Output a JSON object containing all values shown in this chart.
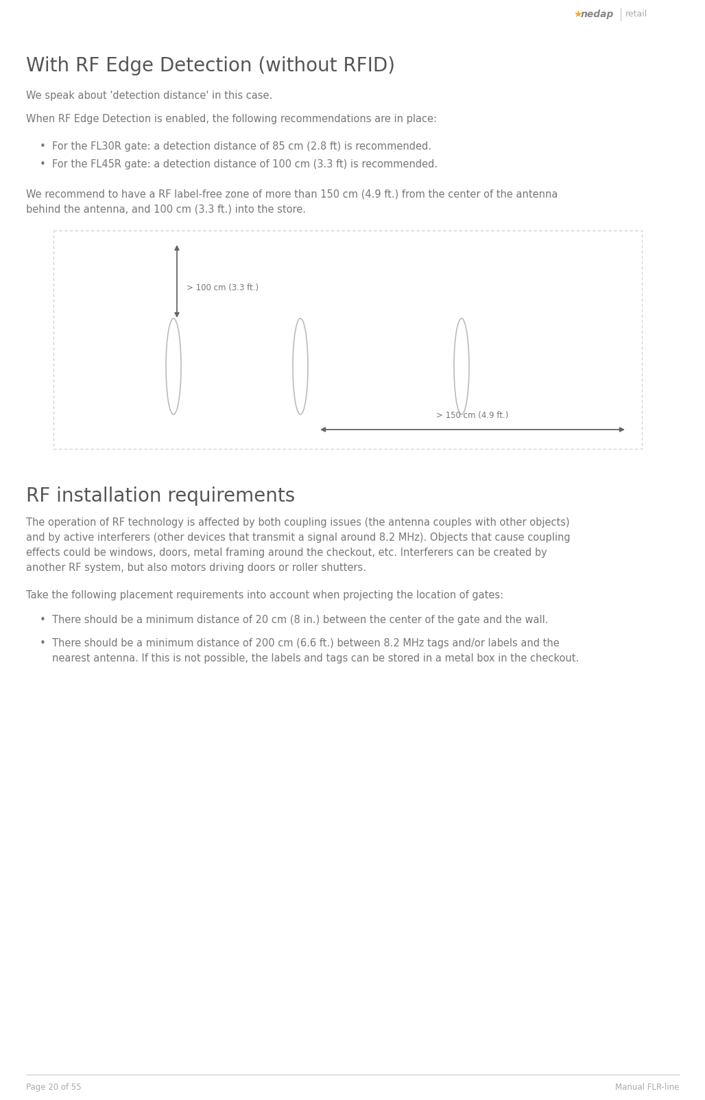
{
  "page_bg": "#ffffff",
  "title": "With RF Edge Detection (without RFID)",
  "title_fontsize": 20,
  "title_color": "#555555",
  "body_fontsize": 10.5,
  "body_color": "#777777",
  "para1": "We speak about 'detection distance' in this case.",
  "para2": "When RF Edge Detection is enabled, the following recommendations are in place:",
  "bullet1": "For the FL30R gate: a detection distance of 85 cm (2.8 ft) is recommended.",
  "bullet2": "For the FL45R gate: a detection distance of 100 cm (3.3 ft) is recommended.",
  "para3_line1": "We recommend to have a RF label-free zone of more than 150 cm (4.9 ft.) from the center of the antenna",
  "para3_line2": "behind the antenna, and 100 cm (3.3 ft.) into the store.",
  "section2_title": "RF installation requirements",
  "section2_title_fontsize": 20,
  "section2_para1_line1": "The operation of RF technology is affected by both coupling issues (the antenna couples with other objects)",
  "section2_para1_line2": "and by active interferers (other devices that transmit a signal around 8.2 MHz). Objects that cause coupling",
  "section2_para1_line3": "effects could be windows, doors, metal framing around the checkout, etc. Interferers can be created by",
  "section2_para1_line4": "another RF system, but also motors driving doors or roller shutters.",
  "section2_para2": "Take the following placement requirements into account when projecting the location of gates:",
  "section2_bullet1": "There should be a minimum distance of 20 cm (8 in.) between the center of the gate and the wall.",
  "section2_bullet2_line1": "There should be a minimum distance of 200 cm (6.6 ft.) between 8.2 MHz tags and/or labels and the",
  "section2_bullet2_line2": "nearest antenna. If this is not possible, the labels and tags can be stored in a metal box in the checkout.",
  "footer_left": "Page 20 of 55",
  "footer_right": "Manual FLR-line",
  "footer_color": "#aaaaaa",
  "footer_fontsize": 8.5,
  "diagram_border_color": "#cccccc",
  "diagram_arrow_color": "#666666",
  "diagram_label_100": "> 100 cm (3.3 ft.)",
  "diagram_label_150": "> 150 cm (4.9 ft.)",
  "diagram_antenna_color": "#bbbbbb",
  "orange_color": "#f5a623",
  "logo_color": "#888888"
}
